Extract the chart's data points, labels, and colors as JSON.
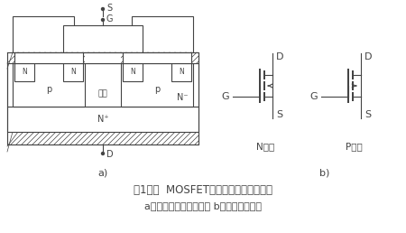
{
  "title_line1": "图1功率  MOSFET的结构和电气图形符号",
  "title_line2": "a）内部结构断面示意图 b）电气图形符号",
  "label_a": "a)",
  "label_b": "b)",
  "label_N": "N沟道",
  "label_P": "P沟道",
  "lc": "#444444",
  "lw": 0.8
}
